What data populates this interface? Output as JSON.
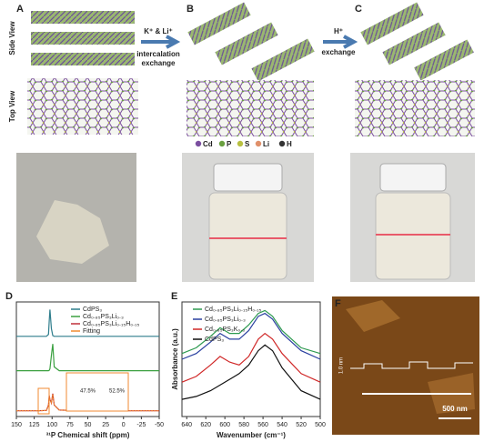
{
  "panels": {
    "A": {
      "label": "A",
      "side_view": "Side View",
      "top_view": "Top View"
    },
    "B": {
      "label": "B",
      "arrow_top": "K⁺ & Li⁺",
      "arrow_mid": "intercalation",
      "arrow_bottom": "exchange"
    },
    "C": {
      "label": "C",
      "arrow_top": "H⁺",
      "arrow_bottom": "exchange"
    }
  },
  "atom_legend": [
    {
      "name": "Cd",
      "color": "#7b4fa0"
    },
    {
      "name": "P",
      "color": "#6aa040"
    },
    {
      "name": "S",
      "color": "#b8c040"
    },
    {
      "name": "Li",
      "color": "#e0906a"
    },
    {
      "name": "H",
      "color": "#333333"
    }
  ],
  "chart_data": [
    {
      "type": "line",
      "panel_label": "D",
      "x_label": "³¹P Chemical shift (ppm)",
      "xlim": [
        150,
        -50
      ],
      "xticks": [
        150,
        125,
        100,
        75,
        50,
        25,
        0,
        -25,
        -50
      ],
      "ylim": [
        0,
        3
      ],
      "x": [
        150,
        120,
        108,
        105,
        104,
        103,
        101,
        99,
        97,
        90,
        50,
        0,
        -50
      ],
      "series": [
        {
          "name": "CdPS₃",
          "color": "#2e7d8c",
          "values": [
            2.1,
            2.1,
            2.1,
            2.15,
            2.5,
            2.8,
            2.3,
            2.12,
            2.1,
            2.1,
            2.1,
            2.1,
            2.1
          ]
        },
        {
          "name": "Cd₀.₈₅PS₃Li₀.₃",
          "color": "#3aa040",
          "values": [
            1.2,
            1.2,
            1.2,
            1.2,
            1.21,
            1.25,
            1.6,
            1.9,
            1.3,
            1.2,
            1.2,
            1.2,
            1.2
          ]
        },
        {
          "name": "Cd₀.₈₅PS₃Li₀.₁₅H₀.₁₅",
          "color": "#c0303a",
          "values": [
            0.15,
            0.15,
            0.16,
            0.3,
            0.55,
            0.45,
            0.35,
            0.6,
            0.3,
            0.17,
            0.15,
            0.15,
            0.15
          ]
        },
        {
          "name": "Fitting",
          "color": "#f08a30",
          "values": [
            0.15,
            0.15,
            0.16,
            0.28,
            0.52,
            0.44,
            0.36,
            0.58,
            0.3,
            0.17,
            0.15,
            0.15,
            0.15
          ]
        }
      ],
      "annotations": [
        "47.5%",
        "52.5%"
      ]
    },
    {
      "type": "line",
      "panel_label": "E",
      "x_label": "Wavenumber (cm⁻¹)",
      "y_label": "Absorbance (a.u.)",
      "xlim": [
        645,
        500
      ],
      "xticks": [
        640,
        620,
        600,
        580,
        560,
        540,
        520,
        500
      ],
      "ylim": [
        0,
        4
      ],
      "x": [
        645,
        630,
        615,
        605,
        595,
        585,
        575,
        565,
        558,
        550,
        540,
        520,
        500
      ],
      "series": [
        {
          "name": "Cd₀.₈₅PS₃Li₀.₁₅H₀.₁₅",
          "color": "#2e9a50",
          "values": [
            2.2,
            2.4,
            2.8,
            3.1,
            2.9,
            2.9,
            3.2,
            3.6,
            3.7,
            3.5,
            3.0,
            2.4,
            2.2
          ]
        },
        {
          "name": "Cd₀.₈₅PS₃Li₀.₃",
          "color": "#2a40a0",
          "values": [
            2.0,
            2.2,
            2.6,
            2.9,
            2.7,
            2.7,
            3.0,
            3.5,
            3.6,
            3.4,
            2.9,
            2.3,
            2.0
          ]
        },
        {
          "name": "Cd₀.₈₅PS₃K₀.₃",
          "color": "#d02828",
          "values": [
            1.2,
            1.4,
            1.8,
            2.1,
            1.9,
            1.8,
            2.1,
            2.7,
            2.9,
            2.7,
            2.2,
            1.5,
            1.2
          ]
        },
        {
          "name": "CdPS₃",
          "color": "#111111",
          "values": [
            0.6,
            0.7,
            0.9,
            1.1,
            1.3,
            1.5,
            1.8,
            2.3,
            2.5,
            2.3,
            1.7,
            0.9,
            0.6
          ]
        }
      ]
    }
  ],
  "afm": {
    "label": "F",
    "height_label": "1.0 nm",
    "scale_bar": "500 nm"
  }
}
